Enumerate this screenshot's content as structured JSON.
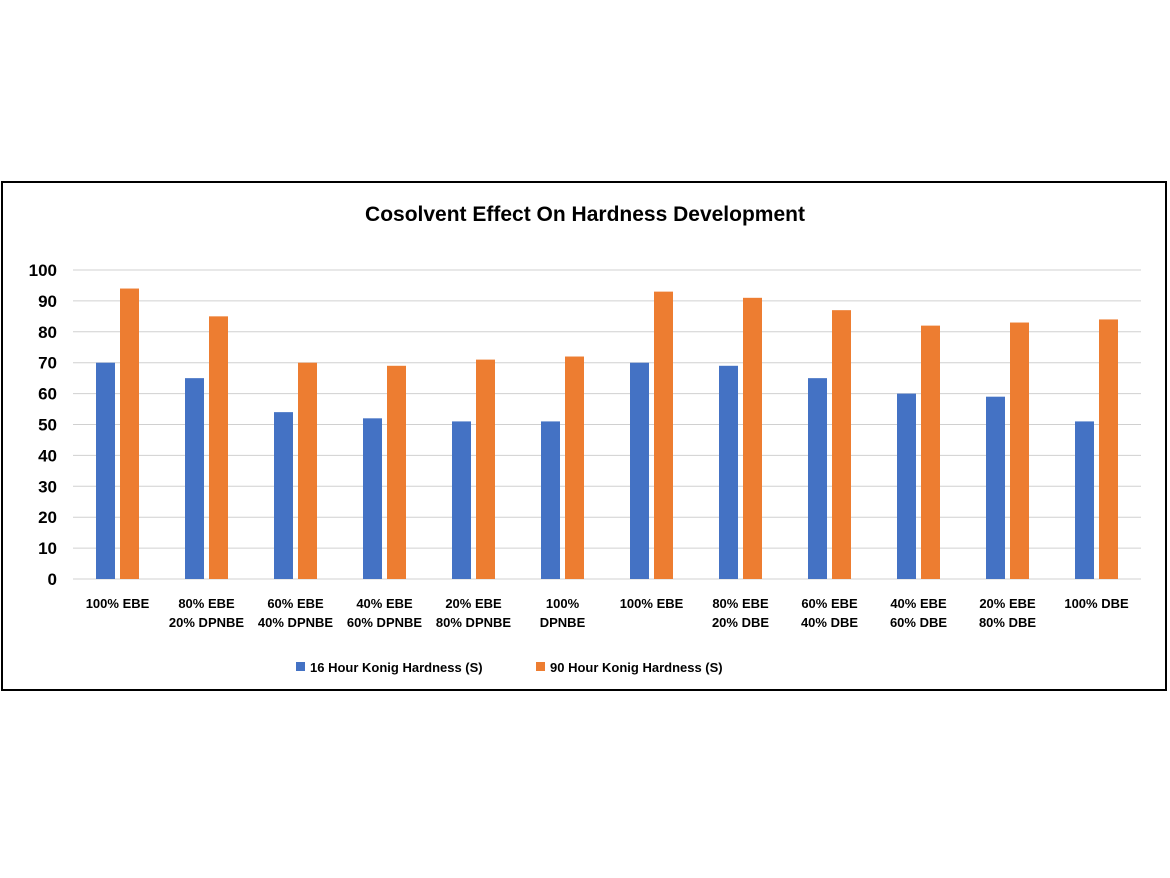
{
  "chart_data": {
    "type": "bar",
    "title": "Cosolvent Effect On Hardness Development",
    "xlabel": "",
    "ylabel": "",
    "ylim": [
      0,
      100
    ],
    "yticks": [
      "0",
      "10",
      "20",
      "30",
      "40",
      "50",
      "60",
      "70",
      "80",
      "90",
      "100"
    ],
    "grid": true,
    "legend_position": "bottom",
    "categories": [
      [
        "100% EBE"
      ],
      [
        "80% EBE",
        "20% DPNBE"
      ],
      [
        "60% EBE",
        "40% DPNBE"
      ],
      [
        "40% EBE",
        "60% DPNBE"
      ],
      [
        "20% EBE",
        "80% DPNBE"
      ],
      [
        "100%",
        "DPNBE"
      ],
      [
        "100% EBE"
      ],
      [
        "80% EBE",
        "20% DBE"
      ],
      [
        "60% EBE",
        "40% DBE"
      ],
      [
        "40% EBE",
        "60% DBE"
      ],
      [
        "20% EBE",
        "80% DBE"
      ],
      [
        "100% DBE"
      ]
    ],
    "series": [
      {
        "name": "16 Hour Konig Hardness (S)",
        "color": "#4472c4",
        "values": [
          70,
          65,
          54,
          52,
          51,
          51,
          70,
          69,
          65,
          60,
          59,
          51
        ]
      },
      {
        "name": "90 Hour Konig Hardness (S)",
        "color": "#ed7d31",
        "values": [
          94,
          85,
          70,
          69,
          71,
          72,
          93,
          91,
          87,
          82,
          83,
          84
        ]
      }
    ]
  }
}
